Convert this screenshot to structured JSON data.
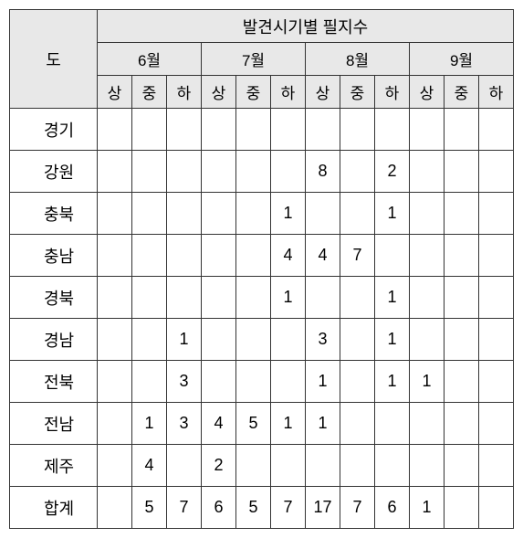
{
  "headers": {
    "province": "도",
    "topTitle": "발견시기별 필지수",
    "months": [
      "6월",
      "7월",
      "8월",
      "9월"
    ],
    "subPeriods": [
      "상",
      "중",
      "하"
    ]
  },
  "rows": [
    {
      "label": "경기",
      "cells": [
        "",
        "",
        "",
        "",
        "",
        "",
        "",
        "",
        "",
        "",
        "",
        ""
      ]
    },
    {
      "label": "강원",
      "cells": [
        "",
        "",
        "",
        "",
        "",
        "",
        "8",
        "",
        "2",
        "",
        "",
        ""
      ]
    },
    {
      "label": "충북",
      "cells": [
        "",
        "",
        "",
        "",
        "",
        "1",
        "",
        "",
        "1",
        "",
        "",
        ""
      ]
    },
    {
      "label": "충남",
      "cells": [
        "",
        "",
        "",
        "",
        "",
        "4",
        "4",
        "7",
        "",
        "",
        "",
        ""
      ]
    },
    {
      "label": "경북",
      "cells": [
        "",
        "",
        "",
        "",
        "",
        "1",
        "",
        "",
        "1",
        "",
        "",
        ""
      ]
    },
    {
      "label": "경남",
      "cells": [
        "",
        "",
        "1",
        "",
        "",
        "",
        "3",
        "",
        "1",
        "",
        "",
        ""
      ]
    },
    {
      "label": "전북",
      "cells": [
        "",
        "",
        "3",
        "",
        "",
        "",
        "1",
        "",
        "1",
        "1",
        "",
        ""
      ]
    },
    {
      "label": "전남",
      "cells": [
        "",
        "1",
        "3",
        "4",
        "5",
        "1",
        "1",
        "",
        "",
        "",
        "",
        ""
      ]
    },
    {
      "label": "제주",
      "cells": [
        "",
        "4",
        "",
        "2",
        "",
        "",
        "",
        "",
        "",
        "",
        "",
        ""
      ]
    },
    {
      "label": "합계",
      "cells": [
        "",
        "5",
        "7",
        "6",
        "5",
        "7",
        "17",
        "7",
        "6",
        "1",
        "",
        ""
      ]
    }
  ],
  "style": {
    "headerBg": "#e8e8e8",
    "borderColor": "#333333",
    "bodyBg": "#ffffff"
  }
}
